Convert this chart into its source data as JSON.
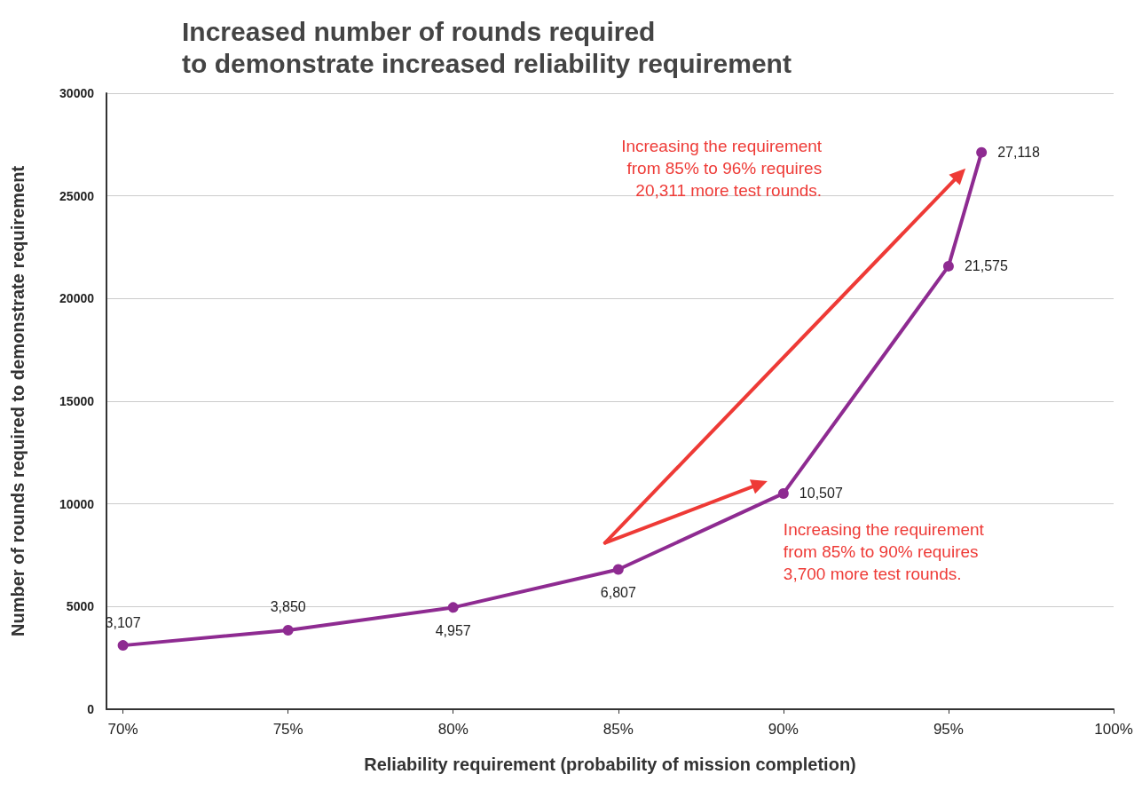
{
  "chart_data": {
    "type": "line",
    "title": "Increased number of rounds required\nto demonstrate increased reliability requirement",
    "xlabel": "Reliability requirement (probability of mission completion)",
    "ylabel": "Number of rounds required to demonstrate requirement",
    "x": [
      70,
      75,
      80,
      85,
      90,
      95,
      96
    ],
    "series": [
      {
        "color": "#8e2b91",
        "values": [
          3107,
          3850,
          4957,
          6807,
          10507,
          21575,
          27118
        ],
        "value_labels": [
          "3,107",
          "3,850",
          "4,957",
          "6,807",
          "10,507",
          "21,575",
          "27,118"
        ]
      }
    ],
    "xlim": [
      69.5,
      100
    ],
    "xticks": [
      {
        "value": 70,
        "label": "70%"
      },
      {
        "value": 75,
        "label": "75%"
      },
      {
        "value": 80,
        "label": "80%"
      },
      {
        "value": 85,
        "label": "85%"
      },
      {
        "value": 90,
        "label": "90%"
      },
      {
        "value": 95,
        "label": "95%"
      },
      {
        "value": 100,
        "label": "100%"
      }
    ],
    "ylim": [
      0,
      30000
    ],
    "yticks": [
      0,
      5000,
      10000,
      15000,
      20000,
      25000,
      30000
    ],
    "grid": "y",
    "marker": "circle",
    "line_style": "solid",
    "annotations": [
      "Increasing the requirement from 85% to 96% requires 20,311 more test rounds.",
      "Increasing the requirement from 85% to 90% requires 3,700 more test rounds."
    ]
  }
}
